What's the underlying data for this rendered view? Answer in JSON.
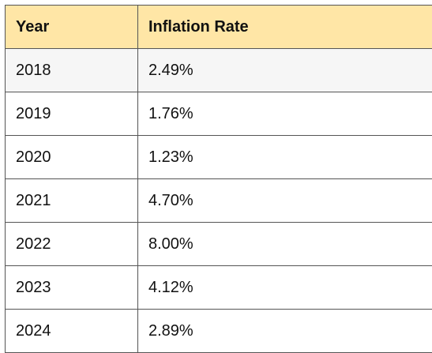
{
  "table": {
    "headers": [
      "Year",
      "Inflation Rate"
    ],
    "rows": [
      [
        "2018",
        "2.49%"
      ],
      [
        "2019",
        "1.76%"
      ],
      [
        "2020",
        "1.23%"
      ],
      [
        "2021",
        "4.70%"
      ],
      [
        "2022",
        "8.00%"
      ],
      [
        "2023",
        "4.12%"
      ],
      [
        "2024",
        "2.89%"
      ]
    ]
  },
  "colors": {
    "header_bg": "#ffe6a6",
    "odd_row_bg": "#f6f6f6",
    "even_row_bg": "#ffffff",
    "border": "#555555"
  }
}
